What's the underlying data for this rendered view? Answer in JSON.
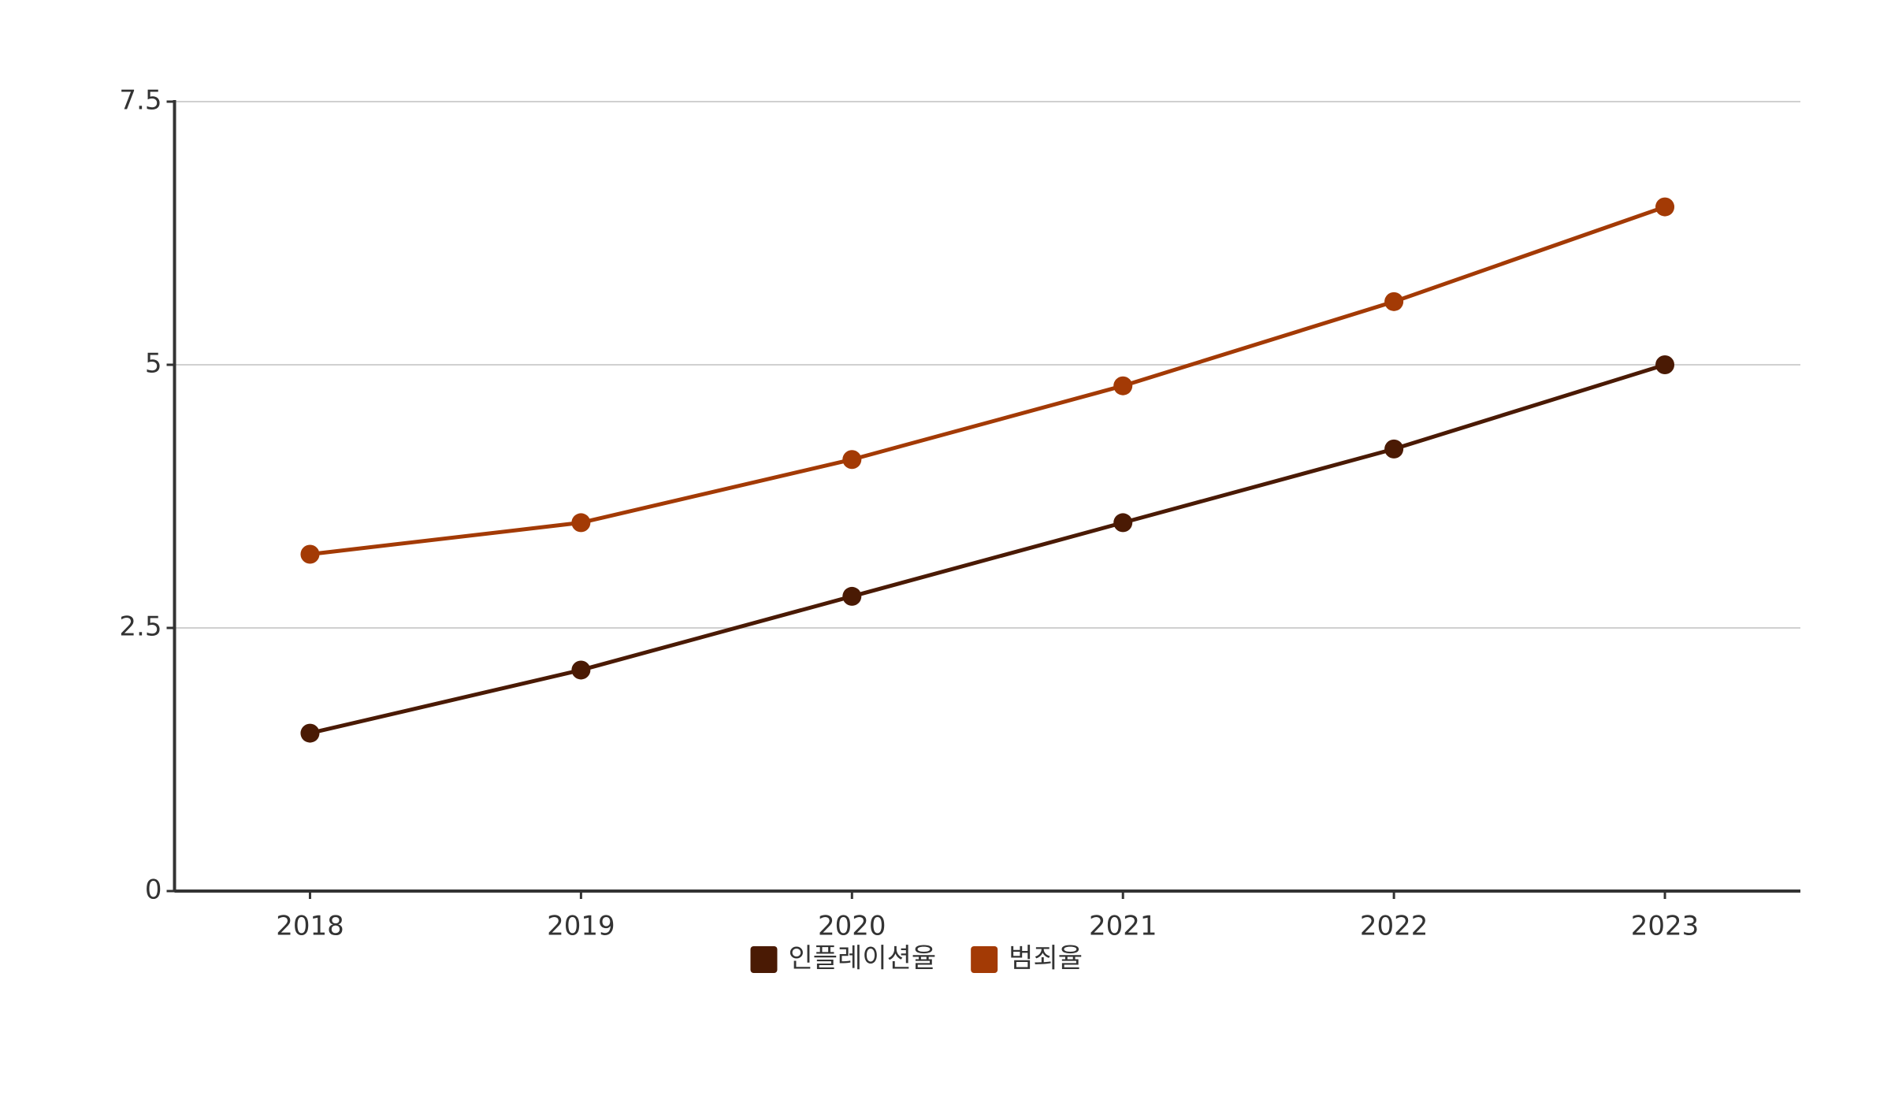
{
  "chart_data": {
    "type": "line",
    "categories": [
      "2018",
      "2019",
      "2020",
      "2021",
      "2022",
      "2023"
    ],
    "series": [
      {
        "name": "인플레이션율",
        "color": "#4a1a04",
        "values": [
          1.5,
          2.1,
          2.8,
          3.5,
          4.2,
          5.0
        ]
      },
      {
        "name": "범죄율",
        "color": "#a33a05",
        "values": [
          3.2,
          3.5,
          4.1,
          4.8,
          5.6,
          6.5
        ]
      }
    ],
    "ylim": [
      0,
      7.5
    ],
    "yticks": [
      0,
      2.5,
      5,
      7.5
    ],
    "grid": true,
    "legend": "bottom"
  }
}
